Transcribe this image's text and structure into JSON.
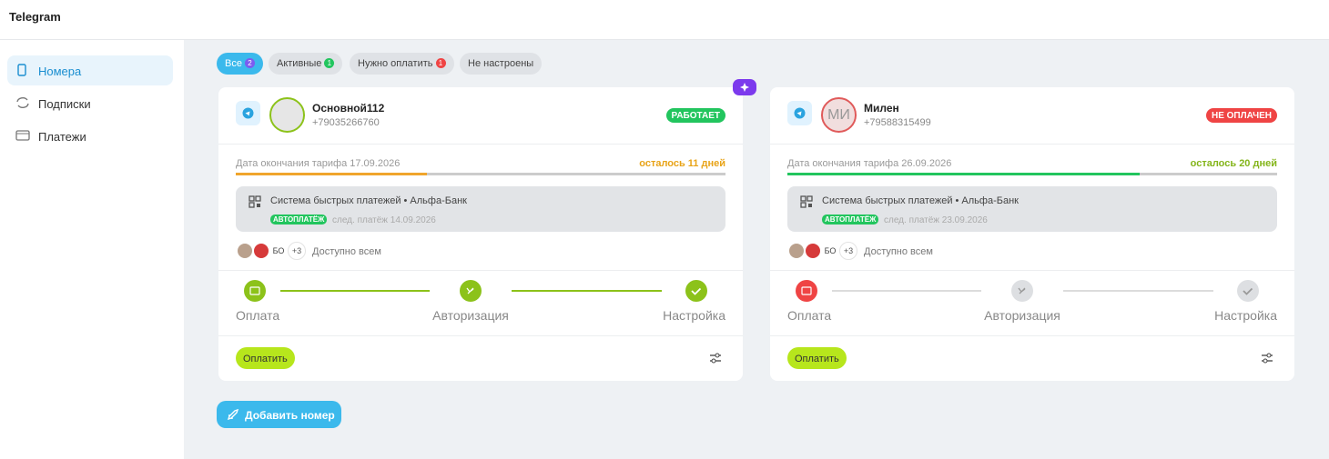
{
  "header": {
    "title": "Telegram"
  },
  "sidebar": {
    "items": [
      "Номера",
      "Подписки",
      "Платежи"
    ]
  },
  "filters": [
    {
      "label": "Все",
      "count": 2
    },
    {
      "label": "Активные",
      "count": 1
    },
    {
      "label": "Нужно оплатить",
      "count": 1
    },
    {
      "label": "Не настроены"
    }
  ],
  "cards": [
    {
      "name": "Основной112",
      "phone": "+79035266760",
      "status": "РАБОТАЕТ",
      "tariff": "Дата окончания тарифа 17.09.2026",
      "remaining": "осталось 11 дней",
      "payment_method": "Система быстрых платежей • Альфа-Банк",
      "autopay": "АВТОПЛАТЁЖ",
      "next_payment": "след. платёж 14.09.2026",
      "member_initials": "БО",
      "members_more": "+3",
      "access": "Доступно всем",
      "steps": [
        "Оплата",
        "Авторизация",
        "Настройка"
      ],
      "pay_button": "Оплатить"
    },
    {
      "name": "Милен",
      "phone": "+79588315499",
      "status": "НЕ ОПЛАЧЕН",
      "avatar_initials": "МИ",
      "tariff": "Дата окончания тарифа 26.09.2026",
      "remaining": "осталось 20 дней",
      "payment_method": "Система быстрых платежей • Альфа-Банк",
      "autopay": "АВТОПЛАТЁЖ",
      "next_payment": "след. платёж 23.09.2026",
      "member_initials": "БО",
      "members_more": "+3",
      "access": "Доступно всем",
      "steps": [
        "Оплата",
        "Авторизация",
        "Настройка"
      ],
      "pay_button": "Оплатить"
    }
  ],
  "add_button": "Добавить номер"
}
